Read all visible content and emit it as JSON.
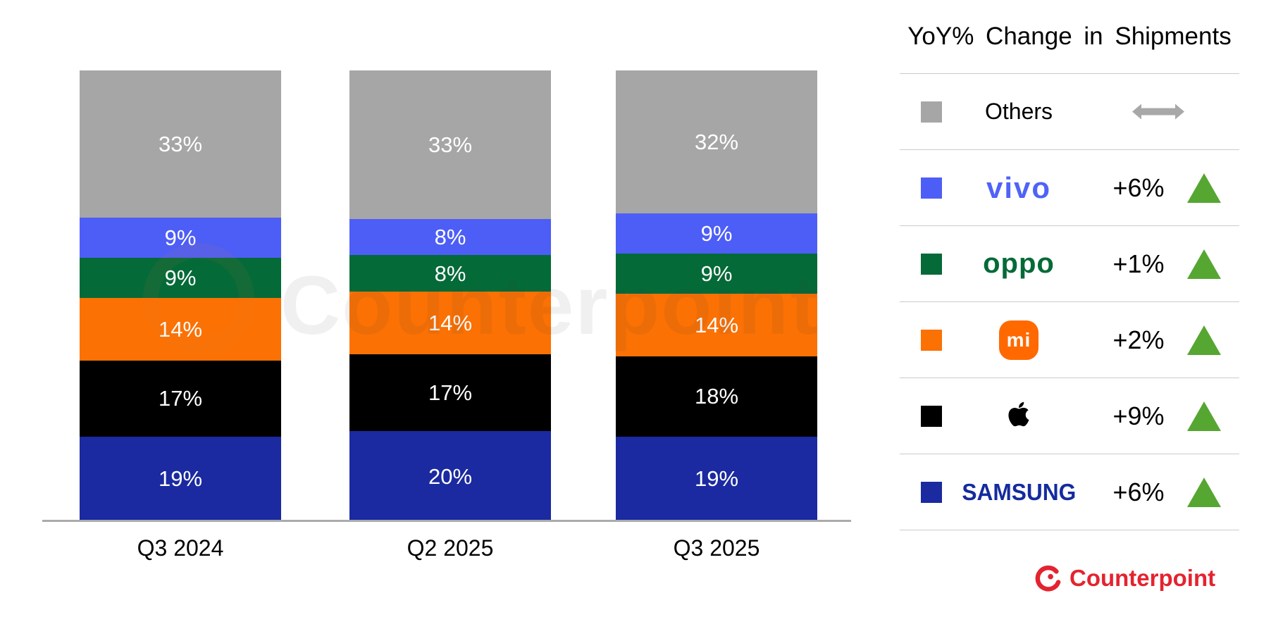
{
  "watermark": {
    "text": "Counterpoint"
  },
  "legend": {
    "title": "YoY% Change in Shipments",
    "rows": [
      {
        "name": "others",
        "label": "Others",
        "swatch": "#a6a6a6",
        "logo": "plain",
        "change": "",
        "indicator": "flat"
      },
      {
        "name": "vivo",
        "label": "vivo",
        "swatch": "#4d5ef6",
        "logo": "vivo",
        "change": "+6%",
        "indicator": "up"
      },
      {
        "name": "oppo",
        "label": "oppo",
        "swatch": "#046a38",
        "logo": "oppo",
        "change": "+1%",
        "indicator": "up"
      },
      {
        "name": "xiaomi",
        "label": "mi",
        "swatch": "#fb7104",
        "logo": "mi",
        "change": "+2%",
        "indicator": "up"
      },
      {
        "name": "apple",
        "label": "",
        "swatch": "#000000",
        "logo": "apple",
        "change": "+9%",
        "indicator": "up"
      },
      {
        "name": "samsung",
        "label": "SAMSUNG",
        "swatch": "#1b2aa0",
        "logo": "samsung",
        "change": "+6%",
        "indicator": "up"
      }
    ],
    "colors": {
      "indicator_up": "#56a632",
      "flat_arrow": "#a8a8a8",
      "divider": "#cbcbcb"
    }
  },
  "chart_data": {
    "type": "bar",
    "stacked": true,
    "categories": [
      "Q3 2024",
      "Q2 2025",
      "Q3 2025"
    ],
    "series": [
      {
        "name": "Others",
        "color": "#a6a6a6",
        "values": [
          33,
          33,
          32
        ]
      },
      {
        "name": "vivo",
        "color": "#4d5ef6",
        "values": [
          9,
          8,
          9
        ]
      },
      {
        "name": "OPPO",
        "color": "#046a38",
        "values": [
          9,
          8,
          9
        ]
      },
      {
        "name": "Xiaomi",
        "color": "#fb7104",
        "values": [
          14,
          14,
          14
        ]
      },
      {
        "name": "Apple",
        "color": "#000000",
        "values": [
          17,
          17,
          18
        ]
      },
      {
        "name": "Samsung",
        "color": "#1b2aa0",
        "values": [
          19,
          20,
          19
        ]
      }
    ],
    "value_suffix": "%",
    "label_color": "#ffffff",
    "stack_order": "top-to-bottom",
    "legend_position": "right",
    "grid": false,
    "axis_color": "#ababab"
  },
  "branding": {
    "name": "Counterpoint",
    "color": "#e4232f"
  }
}
